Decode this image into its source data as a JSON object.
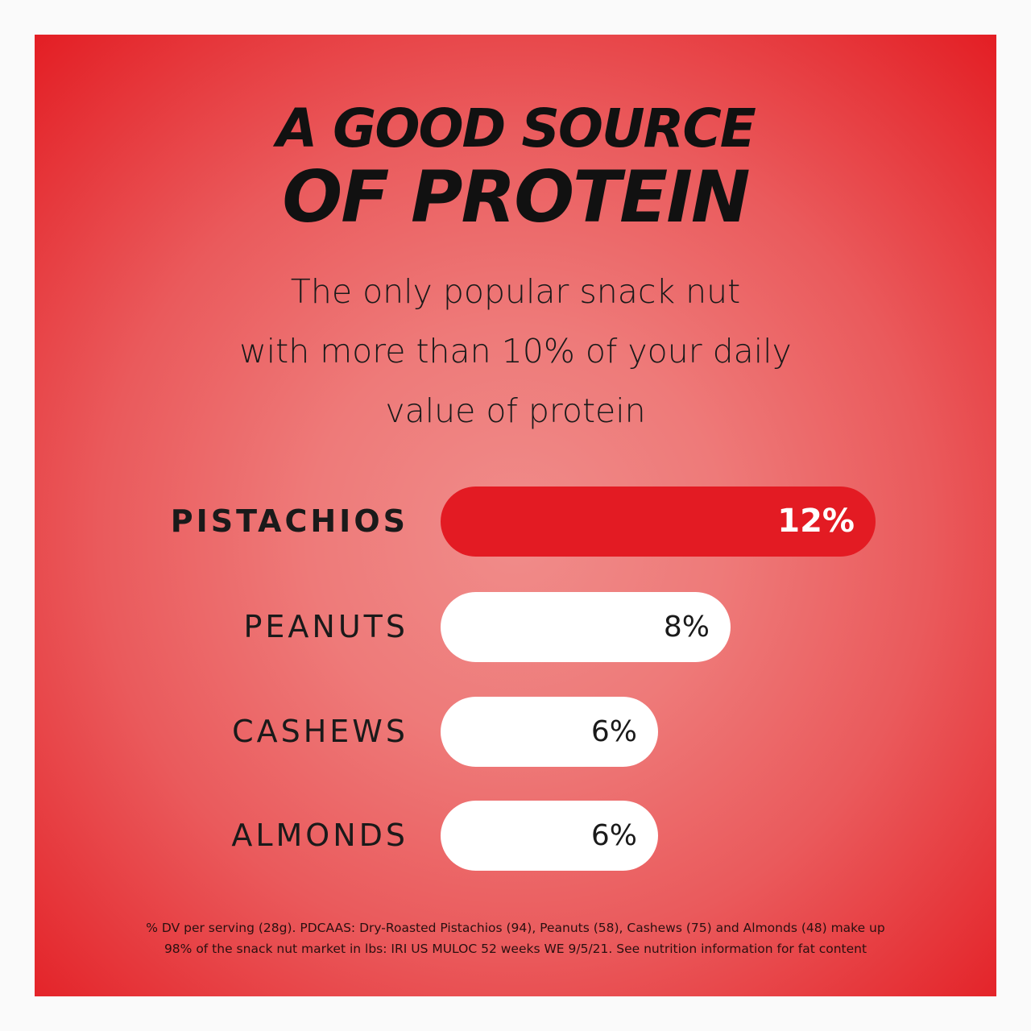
{
  "title_line1": "A GOOD SOURCE",
  "title_line2": "OF PROTEIN",
  "subtitle_lines": [
    "The only popular snack nut",
    "with more than 10% of your daily",
    "value of protein"
  ],
  "colors": {
    "highlight": "#e31b23",
    "bar": "#ffffff",
    "background_center": "#f08c8a",
    "background_edge": "#e31e24"
  },
  "chart_data": {
    "type": "bar",
    "orientation": "horizontal",
    "categories": [
      "PISTACHIOS",
      "PEANUTS",
      "CASHEWS",
      "ALMONDS"
    ],
    "values": [
      12,
      8,
      6,
      6
    ],
    "value_labels": [
      "12%",
      "8%",
      "6%",
      "6%"
    ],
    "highlighted": "PISTACHIOS",
    "grid": false
  },
  "footnote_lines": [
    "% DV per serving (28g). PDCAAS: Dry-Roasted Pistachios (94), Peanuts (58), Cashews (75) and Almonds (48) make up",
    "98% of the snack nut market in lbs: IRI US MULOC 52 weeks WE 9/5/21. See nutrition information for fat content"
  ]
}
